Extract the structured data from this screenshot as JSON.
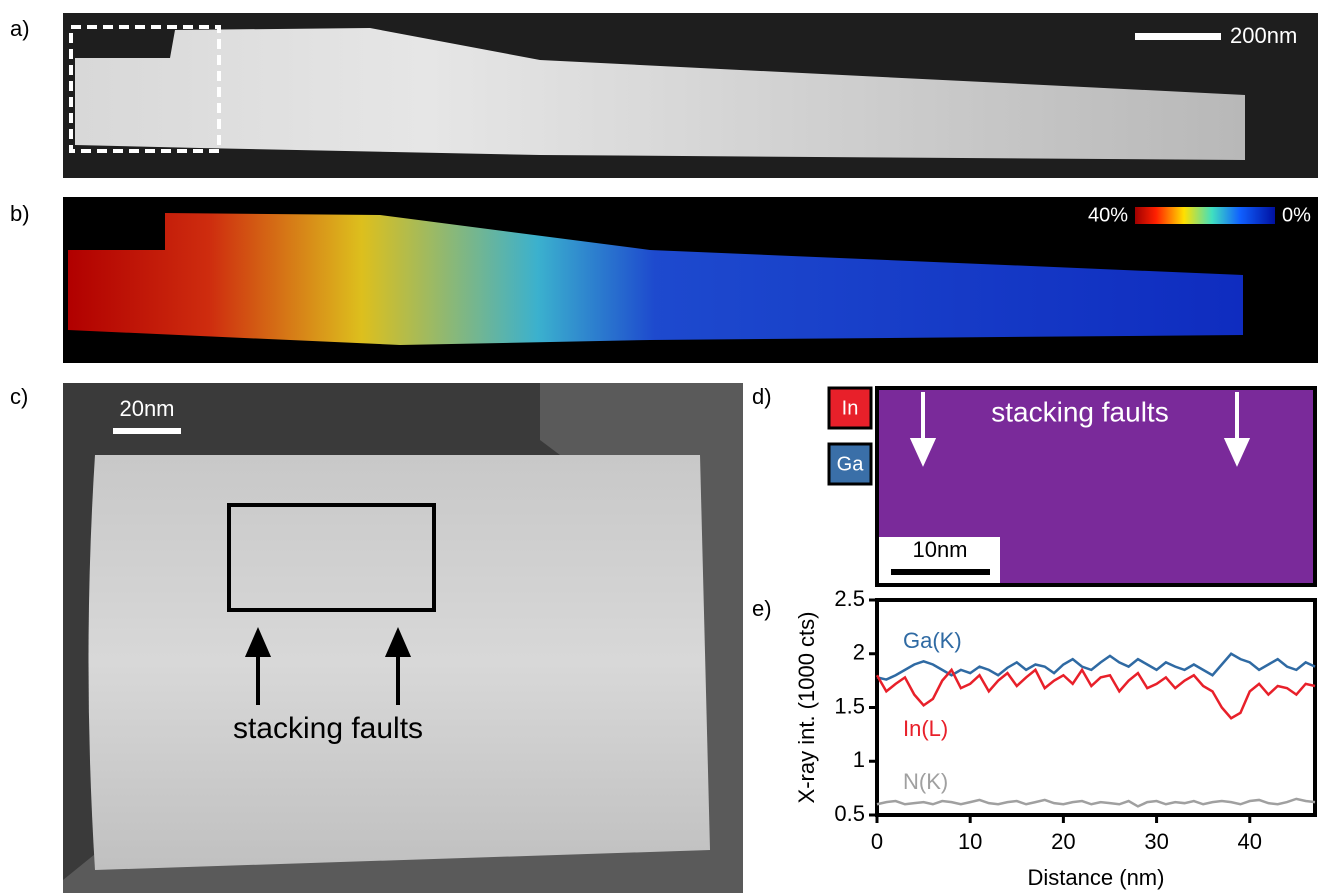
{
  "panels": {
    "a": {
      "label": "a)",
      "scale_bar": "200nm"
    },
    "b": {
      "label": "b)",
      "colorbar_max": "40%",
      "colorbar_min": "0%"
    },
    "c": {
      "label": "c)",
      "scale_bar": "20nm",
      "annotation": "stacking faults"
    },
    "d": {
      "label": "d)",
      "element_1": "In",
      "element_2": "Ga",
      "annotation": "stacking faults",
      "scale_bar": "10nm"
    },
    "e": {
      "label": "e)"
    }
  },
  "chart_data": {
    "type": "line",
    "xlabel": "Distance (nm)",
    "ylabel": "X-ray int. (1000 cts)",
    "x": [
      0,
      1,
      2,
      3,
      4,
      5,
      6,
      7,
      8,
      9,
      10,
      11,
      12,
      13,
      14,
      15,
      16,
      17,
      18,
      19,
      20,
      21,
      22,
      23,
      24,
      25,
      26,
      27,
      28,
      29,
      30,
      31,
      32,
      33,
      34,
      35,
      36,
      37,
      38,
      39,
      40,
      41,
      42,
      43,
      44,
      45,
      46,
      47
    ],
    "series": [
      {
        "name": "Ga(K)",
        "color": "#2f6aa3",
        "values": [
          1.78,
          1.76,
          1.8,
          1.85,
          1.9,
          1.93,
          1.9,
          1.85,
          1.8,
          1.85,
          1.82,
          1.88,
          1.85,
          1.8,
          1.87,
          1.92,
          1.85,
          1.9,
          1.88,
          1.82,
          1.9,
          1.95,
          1.88,
          1.85,
          1.92,
          1.98,
          1.92,
          1.88,
          1.95,
          1.9,
          1.85,
          1.92,
          1.88,
          1.85,
          1.9,
          1.85,
          1.8,
          1.9,
          2.0,
          1.95,
          1.92,
          1.85,
          1.9,
          1.95,
          1.88,
          1.85,
          1.92,
          1.88
        ]
      },
      {
        "name": "In(L)",
        "color": "#e8202a",
        "values": [
          1.8,
          1.65,
          1.72,
          1.78,
          1.62,
          1.52,
          1.58,
          1.75,
          1.85,
          1.68,
          1.72,
          1.8,
          1.65,
          1.75,
          1.82,
          1.7,
          1.78,
          1.85,
          1.68,
          1.75,
          1.8,
          1.72,
          1.85,
          1.7,
          1.78,
          1.8,
          1.65,
          1.75,
          1.82,
          1.68,
          1.72,
          1.78,
          1.68,
          1.75,
          1.8,
          1.7,
          1.65,
          1.5,
          1.4,
          1.45,
          1.65,
          1.72,
          1.62,
          1.7,
          1.68,
          1.62,
          1.72,
          1.7
        ]
      },
      {
        "name": "N(K)",
        "color": "#a0a0a0",
        "values": [
          0.6,
          0.62,
          0.63,
          0.6,
          0.61,
          0.62,
          0.6,
          0.63,
          0.62,
          0.6,
          0.62,
          0.64,
          0.61,
          0.6,
          0.62,
          0.63,
          0.6,
          0.62,
          0.64,
          0.61,
          0.6,
          0.62,
          0.63,
          0.6,
          0.62,
          0.61,
          0.6,
          0.63,
          0.58,
          0.62,
          0.63,
          0.6,
          0.62,
          0.61,
          0.63,
          0.6,
          0.62,
          0.63,
          0.62,
          0.6,
          0.63,
          0.64,
          0.61,
          0.6,
          0.62,
          0.65,
          0.63,
          0.62
        ]
      }
    ],
    "xlim": [
      0,
      47
    ],
    "xticks": [
      0,
      10,
      20,
      30,
      40
    ],
    "ylim": [
      0.5,
      2.5
    ],
    "yticks": [
      0.5,
      1,
      1.5,
      2,
      2.5
    ],
    "grid": false
  }
}
